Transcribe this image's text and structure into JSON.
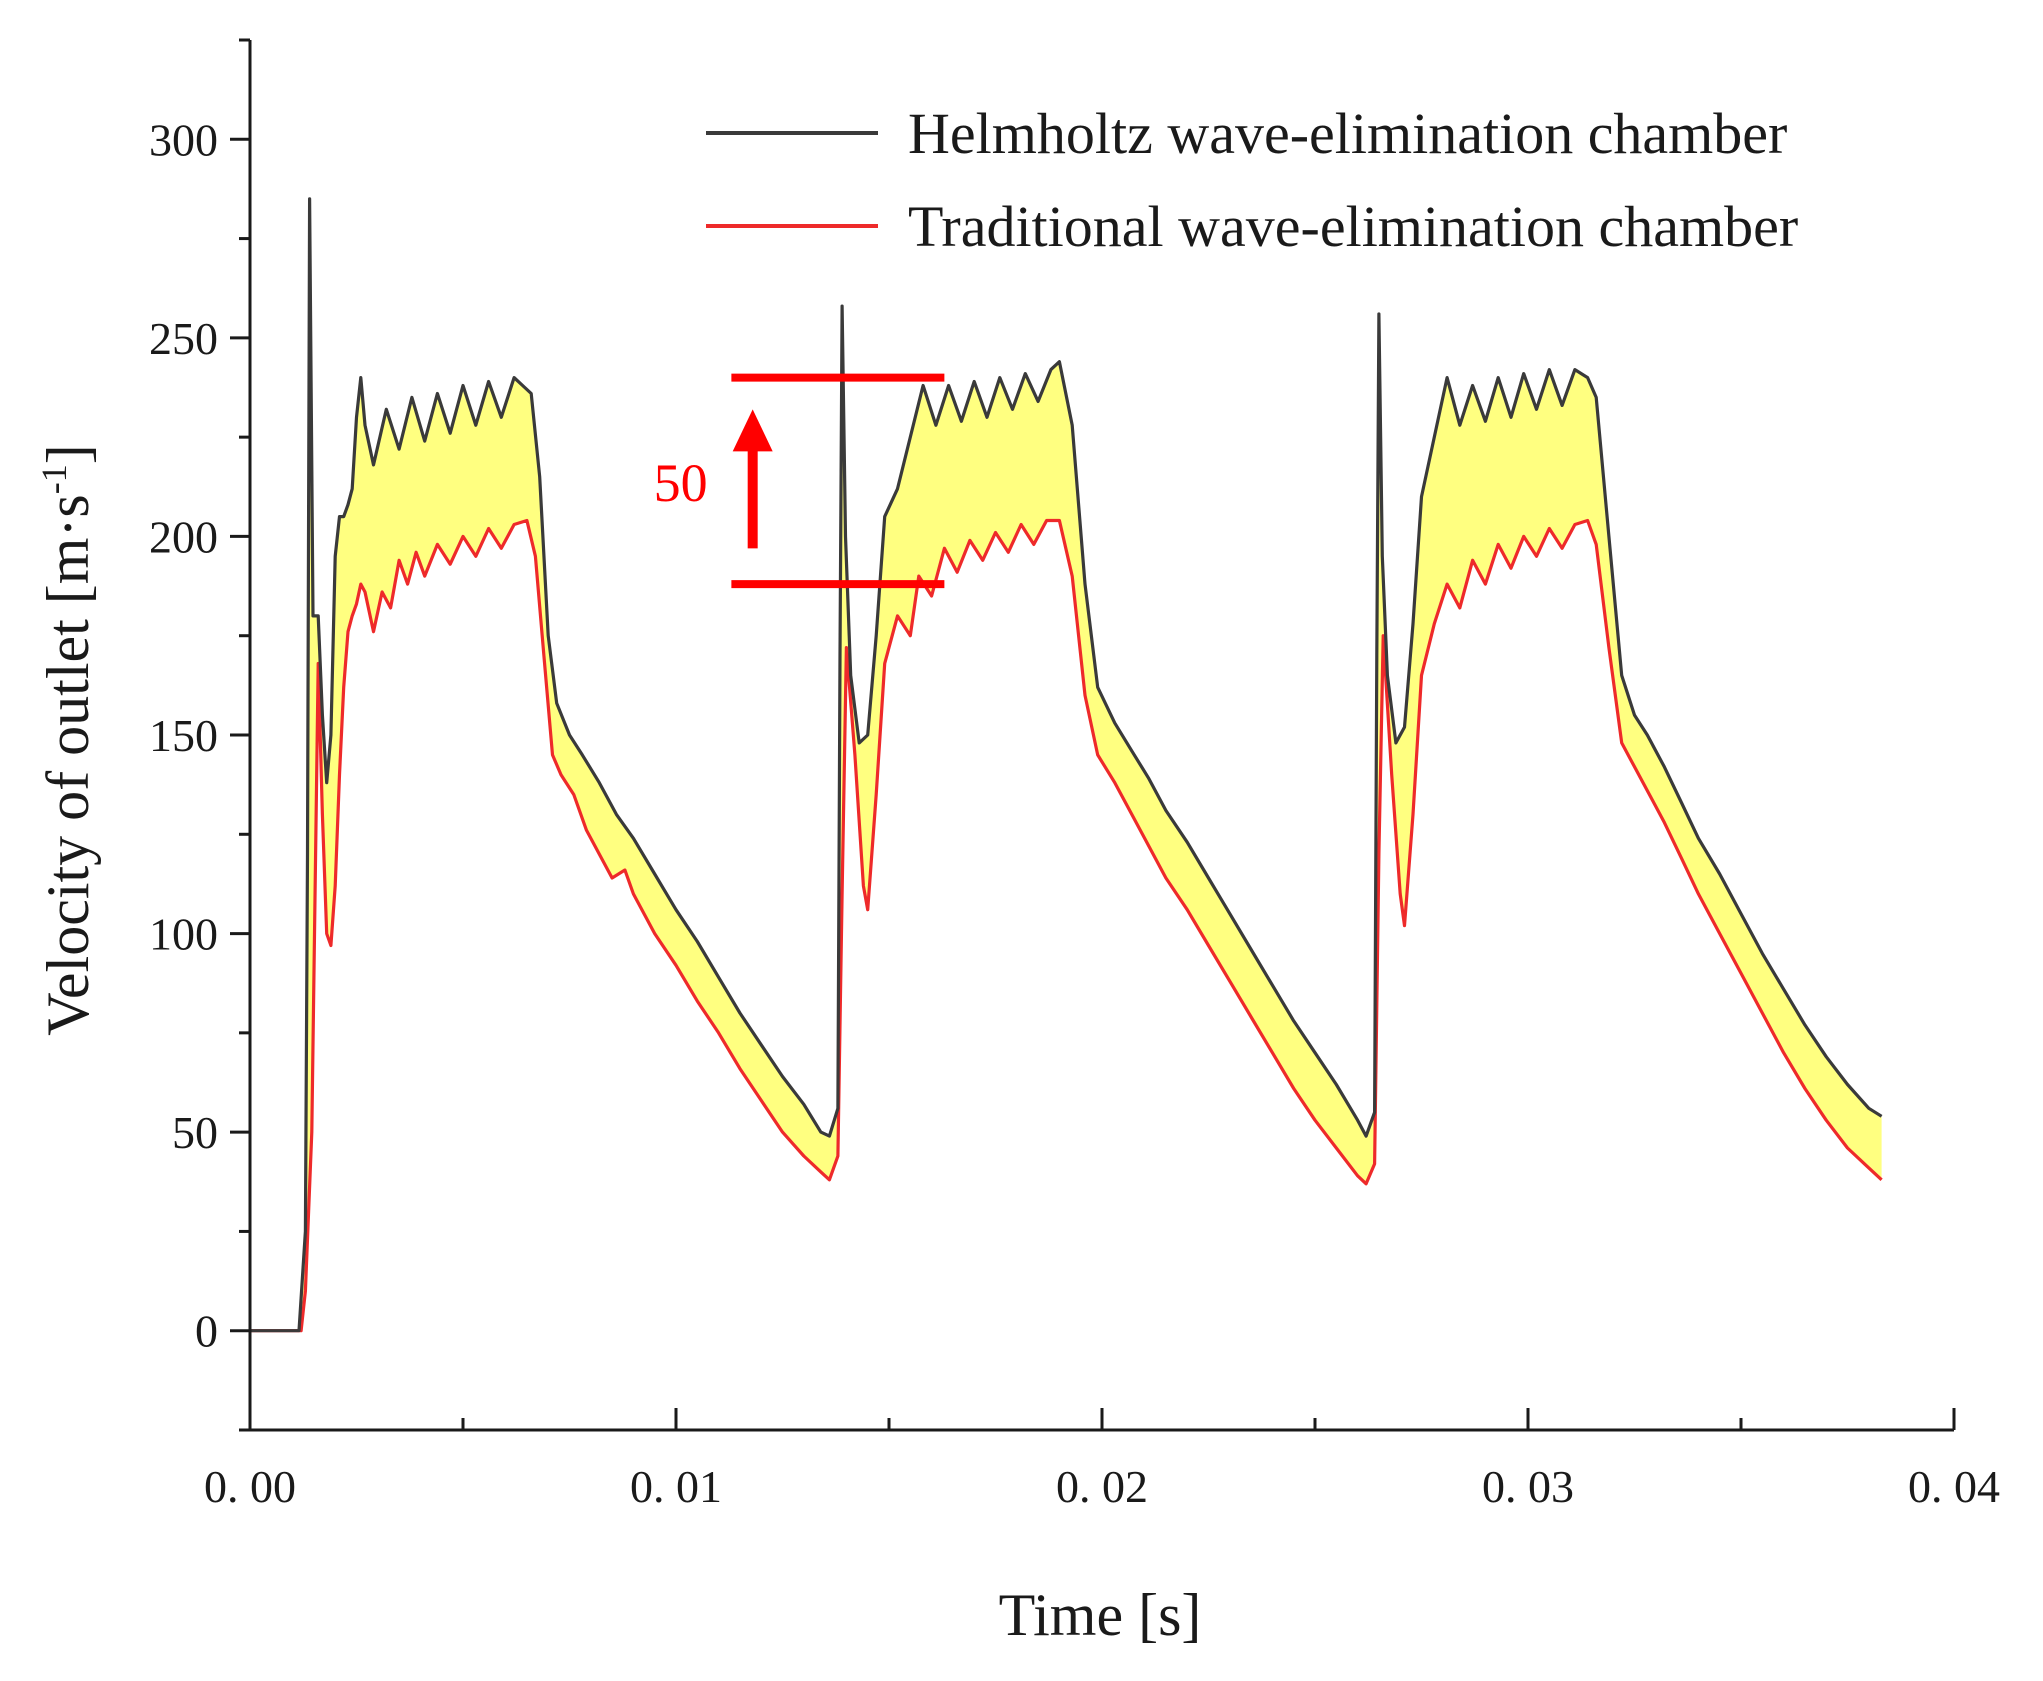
{
  "chart_data": {
    "type": "line",
    "title": "",
    "xlabel": "Time [s]",
    "ylabel_main": "Velocity of outlet [m·s",
    "ylabel_sup": "-1",
    "ylabel_close": "]",
    "xlim": [
      0,
      0.04
    ],
    "ylim": [
      -25,
      325
    ],
    "x_ticks": [
      0,
      0.01,
      0.02,
      0.03,
      0.04
    ],
    "x_tick_labels": [
      "0. 00",
      "0. 01",
      "0. 02",
      "0. 03",
      "0. 04"
    ],
    "y_ticks": [
      0,
      50,
      100,
      150,
      200,
      250,
      300
    ],
    "y_tick_labels": [
      "0",
      "50",
      "100",
      "150",
      "200",
      "250",
      "300"
    ],
    "grid": false,
    "legend_position": "top-right",
    "fill_between": {
      "color": "#ffff80",
      "between": [
        "Helmholtz wave-elimination chamber",
        "Traditional wave-elimination chamber"
      ]
    },
    "series": [
      {
        "name": "Helmholtz wave-elimination chamber",
        "color": "#3a3a3a",
        "points": [
          [
            0.0,
            0
          ],
          [
            0.00115,
            0
          ],
          [
            0.0013,
            25
          ],
          [
            0.00135,
            120
          ],
          [
            0.0014,
            285
          ],
          [
            0.00148,
            180
          ],
          [
            0.0016,
            180
          ],
          [
            0.0017,
            155
          ],
          [
            0.0018,
            138
          ],
          [
            0.0019,
            150
          ],
          [
            0.002,
            195
          ],
          [
            0.0021,
            205
          ],
          [
            0.0022,
            205
          ],
          [
            0.0023,
            208
          ],
          [
            0.0024,
            212
          ],
          [
            0.0025,
            230
          ],
          [
            0.0026,
            240
          ],
          [
            0.0027,
            228
          ],
          [
            0.0029,
            218
          ],
          [
            0.0032,
            232
          ],
          [
            0.0035,
            222
          ],
          [
            0.0038,
            235
          ],
          [
            0.0041,
            224
          ],
          [
            0.0044,
            236
          ],
          [
            0.0047,
            226
          ],
          [
            0.005,
            238
          ],
          [
            0.0053,
            228
          ],
          [
            0.0056,
            239
          ],
          [
            0.0059,
            230
          ],
          [
            0.0062,
            240
          ],
          [
            0.0064,
            238
          ],
          [
            0.0066,
            236
          ],
          [
            0.0068,
            215
          ],
          [
            0.007,
            175
          ],
          [
            0.0072,
            158
          ],
          [
            0.0075,
            150
          ],
          [
            0.0078,
            145
          ],
          [
            0.0082,
            138
          ],
          [
            0.0086,
            130
          ],
          [
            0.009,
            124
          ],
          [
            0.0095,
            115
          ],
          [
            0.01,
            106
          ],
          [
            0.0105,
            98
          ],
          [
            0.011,
            89
          ],
          [
            0.0115,
            80
          ],
          [
            0.012,
            72
          ],
          [
            0.0125,
            64
          ],
          [
            0.013,
            57
          ],
          [
            0.0134,
            50
          ],
          [
            0.0136,
            49
          ],
          [
            0.0138,
            56
          ],
          [
            0.01385,
            170
          ],
          [
            0.0139,
            258
          ],
          [
            0.01398,
            200
          ],
          [
            0.0141,
            165
          ],
          [
            0.0143,
            148
          ],
          [
            0.0145,
            150
          ],
          [
            0.0147,
            175
          ],
          [
            0.0149,
            205
          ],
          [
            0.0152,
            212
          ],
          [
            0.0155,
            225
          ],
          [
            0.0158,
            238
          ],
          [
            0.0161,
            228
          ],
          [
            0.0164,
            238
          ],
          [
            0.0167,
            229
          ],
          [
            0.017,
            239
          ],
          [
            0.0173,
            230
          ],
          [
            0.0176,
            240
          ],
          [
            0.0179,
            232
          ],
          [
            0.0182,
            241
          ],
          [
            0.0185,
            234
          ],
          [
            0.0188,
            242
          ],
          [
            0.019,
            244
          ],
          [
            0.0193,
            228
          ],
          [
            0.0196,
            188
          ],
          [
            0.0199,
            162
          ],
          [
            0.0203,
            153
          ],
          [
            0.0207,
            146
          ],
          [
            0.0211,
            139
          ],
          [
            0.0215,
            131
          ],
          [
            0.022,
            123
          ],
          [
            0.0225,
            114
          ],
          [
            0.023,
            105
          ],
          [
            0.0235,
            96
          ],
          [
            0.024,
            87
          ],
          [
            0.0245,
            78
          ],
          [
            0.025,
            70
          ],
          [
            0.0255,
            62
          ],
          [
            0.026,
            53
          ],
          [
            0.0262,
            49
          ],
          [
            0.0264,
            55
          ],
          [
            0.02645,
            170
          ],
          [
            0.0265,
            256
          ],
          [
            0.02658,
            195
          ],
          [
            0.0267,
            165
          ],
          [
            0.0269,
            148
          ],
          [
            0.0271,
            152
          ],
          [
            0.0273,
            178
          ],
          [
            0.0275,
            210
          ],
          [
            0.0278,
            225
          ],
          [
            0.0281,
            240
          ],
          [
            0.0284,
            228
          ],
          [
            0.0287,
            238
          ],
          [
            0.029,
            229
          ],
          [
            0.0293,
            240
          ],
          [
            0.0296,
            230
          ],
          [
            0.0299,
            241
          ],
          [
            0.0302,
            232
          ],
          [
            0.0305,
            242
          ],
          [
            0.0308,
            233
          ],
          [
            0.0311,
            242
          ],
          [
            0.0314,
            240
          ],
          [
            0.0316,
            235
          ],
          [
            0.0319,
            200
          ],
          [
            0.0322,
            165
          ],
          [
            0.0325,
            155
          ],
          [
            0.0328,
            150
          ],
          [
            0.0332,
            142
          ],
          [
            0.0336,
            133
          ],
          [
            0.034,
            124
          ],
          [
            0.0345,
            115
          ],
          [
            0.035,
            105
          ],
          [
            0.0355,
            95
          ],
          [
            0.036,
            86
          ],
          [
            0.0365,
            77
          ],
          [
            0.037,
            69
          ],
          [
            0.0375,
            62
          ],
          [
            0.038,
            56
          ],
          [
            0.0383,
            54
          ]
        ]
      },
      {
        "name": "Traditional wave-elimination chamber",
        "color": "#ee2a2a",
        "points": [
          [
            0.0,
            0
          ],
          [
            0.0012,
            0
          ],
          [
            0.0013,
            10
          ],
          [
            0.00145,
            50
          ],
          [
            0.0016,
            168
          ],
          [
            0.0017,
            130
          ],
          [
            0.0018,
            100
          ],
          [
            0.0019,
            97
          ],
          [
            0.002,
            112
          ],
          [
            0.0021,
            140
          ],
          [
            0.0022,
            162
          ],
          [
            0.0023,
            176
          ],
          [
            0.0024,
            180
          ],
          [
            0.0025,
            183
          ],
          [
            0.0026,
            188
          ],
          [
            0.0027,
            186
          ],
          [
            0.0029,
            176
          ],
          [
            0.0031,
            186
          ],
          [
            0.0033,
            182
          ],
          [
            0.0035,
            194
          ],
          [
            0.0037,
            188
          ],
          [
            0.0039,
            196
          ],
          [
            0.0041,
            190
          ],
          [
            0.0044,
            198
          ],
          [
            0.0047,
            193
          ],
          [
            0.005,
            200
          ],
          [
            0.0053,
            195
          ],
          [
            0.0056,
            202
          ],
          [
            0.0059,
            197
          ],
          [
            0.0062,
            203
          ],
          [
            0.0065,
            204
          ],
          [
            0.0067,
            195
          ],
          [
            0.0069,
            170
          ],
          [
            0.0071,
            145
          ],
          [
            0.0073,
            140
          ],
          [
            0.0076,
            135
          ],
          [
            0.0079,
            126
          ],
          [
            0.0082,
            120
          ],
          [
            0.0085,
            114
          ],
          [
            0.0088,
            116
          ],
          [
            0.009,
            110
          ],
          [
            0.0095,
            100
          ],
          [
            0.01,
            92
          ],
          [
            0.0105,
            83
          ],
          [
            0.011,
            75
          ],
          [
            0.0115,
            66
          ],
          [
            0.012,
            58
          ],
          [
            0.0125,
            50
          ],
          [
            0.013,
            44
          ],
          [
            0.0134,
            40
          ],
          [
            0.0136,
            38
          ],
          [
            0.0138,
            44
          ],
          [
            0.0139,
            110
          ],
          [
            0.014,
            172
          ],
          [
            0.0142,
            145
          ],
          [
            0.0144,
            112
          ],
          [
            0.0145,
            106
          ],
          [
            0.0147,
            135
          ],
          [
            0.0149,
            168
          ],
          [
            0.0152,
            180
          ],
          [
            0.0155,
            175
          ],
          [
            0.0157,
            190
          ],
          [
            0.016,
            185
          ],
          [
            0.0163,
            197
          ],
          [
            0.0166,
            191
          ],
          [
            0.0169,
            199
          ],
          [
            0.0172,
            194
          ],
          [
            0.0175,
            201
          ],
          [
            0.0178,
            196
          ],
          [
            0.0181,
            203
          ],
          [
            0.0184,
            198
          ],
          [
            0.0187,
            204
          ],
          [
            0.019,
            204
          ],
          [
            0.0193,
            190
          ],
          [
            0.0196,
            160
          ],
          [
            0.0199,
            145
          ],
          [
            0.0203,
            138
          ],
          [
            0.0207,
            130
          ],
          [
            0.0211,
            122
          ],
          [
            0.0215,
            114
          ],
          [
            0.022,
            106
          ],
          [
            0.0225,
            97
          ],
          [
            0.023,
            88
          ],
          [
            0.0235,
            79
          ],
          [
            0.024,
            70
          ],
          [
            0.0245,
            61
          ],
          [
            0.025,
            53
          ],
          [
            0.0255,
            46
          ],
          [
            0.026,
            39
          ],
          [
            0.0262,
            37
          ],
          [
            0.0264,
            42
          ],
          [
            0.0265,
            120
          ],
          [
            0.0266,
            175
          ],
          [
            0.0268,
            140
          ],
          [
            0.027,
            110
          ],
          [
            0.0271,
            102
          ],
          [
            0.0273,
            130
          ],
          [
            0.0275,
            165
          ],
          [
            0.0278,
            178
          ],
          [
            0.0281,
            188
          ],
          [
            0.0284,
            182
          ],
          [
            0.0287,
            194
          ],
          [
            0.029,
            188
          ],
          [
            0.0293,
            198
          ],
          [
            0.0296,
            192
          ],
          [
            0.0299,
            200
          ],
          [
            0.0302,
            195
          ],
          [
            0.0305,
            202
          ],
          [
            0.0308,
            197
          ],
          [
            0.0311,
            203
          ],
          [
            0.0314,
            204
          ],
          [
            0.0316,
            198
          ],
          [
            0.0319,
            172
          ],
          [
            0.0322,
            148
          ],
          [
            0.0325,
            142
          ],
          [
            0.0328,
            136
          ],
          [
            0.0332,
            128
          ],
          [
            0.0336,
            119
          ],
          [
            0.034,
            110
          ],
          [
            0.0345,
            100
          ],
          [
            0.035,
            90
          ],
          [
            0.0355,
            80
          ],
          [
            0.036,
            70
          ],
          [
            0.0365,
            61
          ],
          [
            0.037,
            53
          ],
          [
            0.0375,
            46
          ],
          [
            0.038,
            41
          ],
          [
            0.0383,
            38
          ]
        ]
      }
    ],
    "annotation": {
      "label": "50",
      "color": "#ff0000",
      "x_start": 0.0113,
      "x_end": 0.0163,
      "y_top": 240,
      "y_bottom": 188,
      "arrow_x": 0.0118,
      "arrow_y_from": 197,
      "arrow_y_to": 232
    }
  }
}
